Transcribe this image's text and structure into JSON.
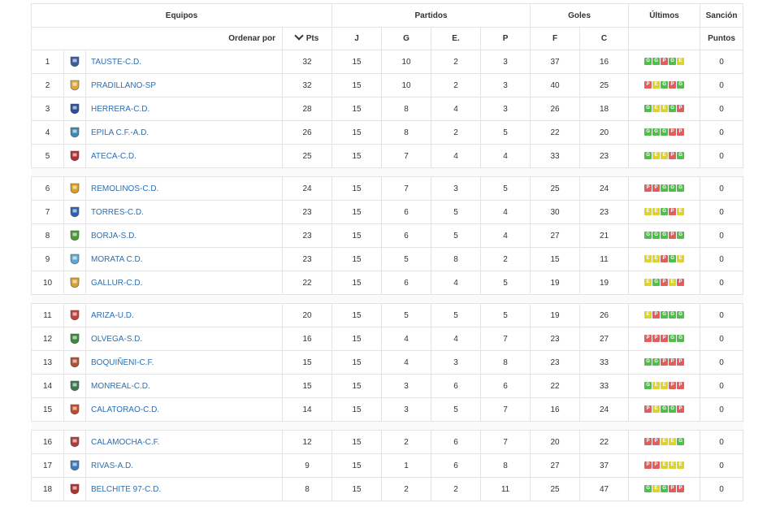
{
  "header": {
    "equipos": "Equipos",
    "partidos": "Partidos",
    "goles": "Goles",
    "ultimos": "Últimos",
    "sancion": "Sanción",
    "ordenar": "Ordenar por",
    "pts": "Pts",
    "j": "J",
    "g": "G",
    "e": "E.",
    "p": "P",
    "f": "F",
    "c": "C",
    "puntos": "Puntos"
  },
  "colors": {
    "win": "#4fbf4a",
    "draw": "#ddd32a",
    "loss": "#e35d5d",
    "link": "#2a6fb5"
  },
  "teams": [
    {
      "pos": "1",
      "name": "TAUSTE-C.D.",
      "pts": "32",
      "j": "15",
      "g": "10",
      "e": "2",
      "p": "3",
      "f": "37",
      "c": "16",
      "last": [
        "G",
        "G",
        "P",
        "G",
        "E"
      ],
      "sanc": "0",
      "crest": "#3b5aa0"
    },
    {
      "pos": "2",
      "name": "PRADILLANO-SP",
      "pts": "32",
      "j": "15",
      "g": "10",
      "e": "2",
      "p": "3",
      "f": "40",
      "c": "25",
      "last": [
        "P",
        "E",
        "G",
        "P",
        "G"
      ],
      "sanc": "0",
      "crest": "#e2a53a"
    },
    {
      "pos": "3",
      "name": "HERRERA-C.D.",
      "pts": "28",
      "j": "15",
      "g": "8",
      "e": "4",
      "p": "3",
      "f": "26",
      "c": "18",
      "last": [
        "G",
        "E",
        "E",
        "G",
        "P"
      ],
      "sanc": "0",
      "crest": "#2b4f9a"
    },
    {
      "pos": "4",
      "name": "EPILA C.F.-A.D.",
      "pts": "26",
      "j": "15",
      "g": "8",
      "e": "2",
      "p": "5",
      "f": "22",
      "c": "20",
      "last": [
        "G",
        "G",
        "G",
        "P",
        "P"
      ],
      "sanc": "0",
      "crest": "#3a8ab5"
    },
    {
      "pos": "5",
      "name": "ATECA-C.D.",
      "pts": "25",
      "j": "15",
      "g": "7",
      "e": "4",
      "p": "4",
      "f": "33",
      "c": "23",
      "last": [
        "G",
        "E",
        "E",
        "P",
        "G"
      ],
      "sanc": "0",
      "crest": "#b03030"
    },
    {
      "pos": "6",
      "name": "REMOLINOS-C.D.",
      "pts": "24",
      "j": "15",
      "g": "7",
      "e": "3",
      "p": "5",
      "f": "25",
      "c": "24",
      "last": [
        "P",
        "P",
        "G",
        "G",
        "G"
      ],
      "sanc": "0",
      "crest": "#d9a020"
    },
    {
      "pos": "7",
      "name": "TORRES-C.D.",
      "pts": "23",
      "j": "15",
      "g": "6",
      "e": "5",
      "p": "4",
      "f": "30",
      "c": "23",
      "last": [
        "E",
        "E",
        "G",
        "P",
        "E"
      ],
      "sanc": "0",
      "crest": "#2f5fb0"
    },
    {
      "pos": "8",
      "name": "BORJA-S.D.",
      "pts": "23",
      "j": "15",
      "g": "6",
      "e": "5",
      "p": "4",
      "f": "27",
      "c": "21",
      "last": [
        "G",
        "G",
        "G",
        "P",
        "G"
      ],
      "sanc": "0",
      "crest": "#4a9a3a"
    },
    {
      "pos": "9",
      "name": "MORATA C.D.",
      "pts": "23",
      "j": "15",
      "g": "5",
      "e": "8",
      "p": "2",
      "f": "15",
      "c": "11",
      "last": [
        "E",
        "E",
        "P",
        "G",
        "E"
      ],
      "sanc": "0",
      "crest": "#5aa8d8"
    },
    {
      "pos": "10",
      "name": "GALLUR-C.D.",
      "pts": "22",
      "j": "15",
      "g": "6",
      "e": "4",
      "p": "5",
      "f": "19",
      "c": "19",
      "last": [
        "E",
        "G",
        "P",
        "E",
        "P"
      ],
      "sanc": "0",
      "crest": "#d8a030"
    },
    {
      "pos": "11",
      "name": "ARIZA-U.D.",
      "pts": "20",
      "j": "15",
      "g": "5",
      "e": "5",
      "p": "5",
      "f": "19",
      "c": "26",
      "last": [
        "E",
        "P",
        "G",
        "G",
        "G"
      ],
      "sanc": "0",
      "crest": "#c04040"
    },
    {
      "pos": "12",
      "name": "OLVEGA-S.D.",
      "pts": "16",
      "j": "15",
      "g": "4",
      "e": "4",
      "p": "7",
      "f": "23",
      "c": "27",
      "last": [
        "P",
        "P",
        "P",
        "G",
        "G"
      ],
      "sanc": "0",
      "crest": "#3a8a3a"
    },
    {
      "pos": "13",
      "name": "BOQUIÑENI-C.F.",
      "pts": "15",
      "j": "15",
      "g": "4",
      "e": "3",
      "p": "8",
      "f": "23",
      "c": "33",
      "last": [
        "G",
        "G",
        "P",
        "P",
        "P"
      ],
      "sanc": "0",
      "crest": "#b05030"
    },
    {
      "pos": "14",
      "name": "MONREAL-C.D.",
      "pts": "15",
      "j": "15",
      "g": "3",
      "e": "6",
      "p": "6",
      "f": "22",
      "c": "33",
      "last": [
        "G",
        "E",
        "E",
        "P",
        "P"
      ],
      "sanc": "0",
      "crest": "#3a7a4a"
    },
    {
      "pos": "15",
      "name": "CALATORAO-C.D.",
      "pts": "14",
      "j": "15",
      "g": "3",
      "e": "5",
      "p": "7",
      "f": "16",
      "c": "24",
      "last": [
        "P",
        "E",
        "G",
        "G",
        "P"
      ],
      "sanc": "0",
      "crest": "#c04a2a"
    },
    {
      "pos": "16",
      "name": "CALAMOCHA-C.F.",
      "pts": "12",
      "j": "15",
      "g": "2",
      "e": "6",
      "p": "7",
      "f": "20",
      "c": "22",
      "last": [
        "P",
        "P",
        "E",
        "E",
        "G"
      ],
      "sanc": "0",
      "crest": "#b03a3a"
    },
    {
      "pos": "17",
      "name": "RIVAS-A.D.",
      "pts": "9",
      "j": "15",
      "g": "1",
      "e": "6",
      "p": "8",
      "f": "27",
      "c": "37",
      "last": [
        "P",
        "P",
        "E",
        "E",
        "E"
      ],
      "sanc": "0",
      "crest": "#3a7ac0"
    },
    {
      "pos": "18",
      "name": "BELCHITE 97-C.D.",
      "pts": "8",
      "j": "15",
      "g": "2",
      "e": "2",
      "p": "11",
      "f": "25",
      "c": "47",
      "last": [
        "G",
        "E",
        "G",
        "P",
        "P"
      ],
      "sanc": "0",
      "crest": "#b03030"
    }
  ]
}
